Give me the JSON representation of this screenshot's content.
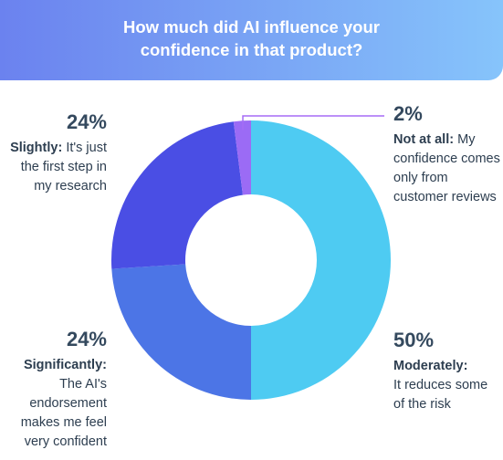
{
  "title": "How much did AI influence your confidence in that product?",
  "chart_data": {
    "type": "pie",
    "title": "How much did AI influence your confidence in that product?",
    "order": "clockwise from top",
    "slices": [
      {
        "label": "Moderately",
        "value": 50,
        "percent_label": "50%",
        "description": "It reduces some of the risk",
        "color": "#4ecbf2"
      },
      {
        "label": "Significantly",
        "value": 24,
        "percent_label": "24%",
        "description": "The AI's endorsement makes me feel very confident",
        "color": "#4c75e6"
      },
      {
        "label": "Slightly",
        "value": 24,
        "percent_label": "24%",
        "description": "It's just the first step in my research",
        "color": "#4a4ee4"
      },
      {
        "label": "Not at all",
        "value": 2,
        "percent_label": "2%",
        "description": "My confidence comes only from customer reviews",
        "color": "#9b6bf5"
      }
    ],
    "leader_line_color": "#a56cf5"
  }
}
